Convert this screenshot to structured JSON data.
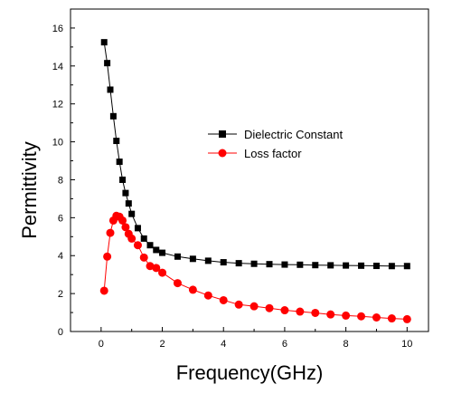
{
  "chart_data": {
    "type": "line",
    "xlabel": "Frequency(GHz)",
    "ylabel": "Permittivity",
    "xlim": [
      -1,
      10.7
    ],
    "ylim": [
      0,
      17
    ],
    "x_ticks": [
      "0",
      "2",
      "4",
      "6",
      "8",
      "10"
    ],
    "y_ticks": [
      "0",
      "2",
      "4",
      "6",
      "8",
      "10",
      "12",
      "14",
      "16"
    ],
    "grid": false,
    "legend_position": "upper-right",
    "series": [
      {
        "name": "Dielectric Constant",
        "marker": "square",
        "color": "#000000",
        "x": [
          0.1,
          0.2,
          0.3,
          0.4,
          0.5,
          0.6,
          0.7,
          0.8,
          0.9,
          1.0,
          1.2,
          1.4,
          1.6,
          1.8,
          2.0,
          2.5,
          3.0,
          3.5,
          4.0,
          4.5,
          5.0,
          5.5,
          6.0,
          6.5,
          7.0,
          7.5,
          8.0,
          8.5,
          9.0,
          9.5,
          10.0
        ],
        "values": [
          15.25,
          14.15,
          12.75,
          11.35,
          10.05,
          8.95,
          8.0,
          7.3,
          6.75,
          6.2,
          5.45,
          4.9,
          4.55,
          4.3,
          4.15,
          3.95,
          3.83,
          3.73,
          3.65,
          3.6,
          3.57,
          3.55,
          3.53,
          3.52,
          3.5,
          3.49,
          3.48,
          3.47,
          3.46,
          3.45,
          3.45
        ]
      },
      {
        "name": "Loss factor",
        "marker": "circle",
        "color": "#ff0000",
        "x": [
          0.1,
          0.2,
          0.3,
          0.4,
          0.5,
          0.6,
          0.7,
          0.8,
          0.9,
          1.0,
          1.2,
          1.4,
          1.6,
          1.8,
          2.0,
          2.5,
          3.0,
          3.5,
          4.0,
          4.5,
          5.0,
          5.5,
          6.0,
          6.5,
          7.0,
          7.5,
          8.0,
          8.5,
          9.0,
          9.5,
          10.0
        ],
        "values": [
          2.15,
          3.95,
          5.2,
          5.85,
          6.1,
          6.05,
          5.85,
          5.5,
          5.15,
          4.9,
          4.55,
          3.9,
          3.45,
          3.35,
          3.1,
          2.55,
          2.2,
          1.9,
          1.65,
          1.42,
          1.33,
          1.23,
          1.12,
          1.05,
          0.98,
          0.9,
          0.84,
          0.8,
          0.74,
          0.69,
          0.65
        ]
      }
    ]
  }
}
